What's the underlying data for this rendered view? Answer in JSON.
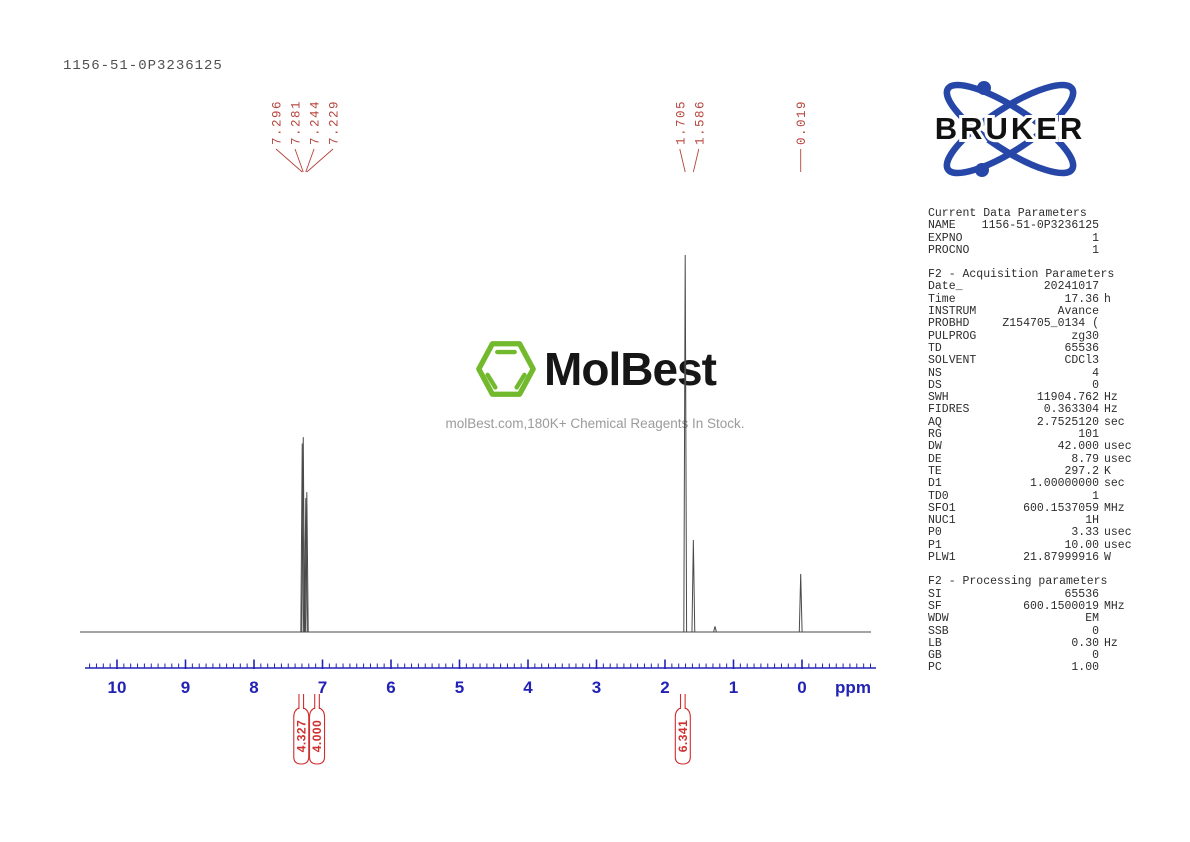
{
  "page": {
    "sample_id": "1156-51-0P3236125"
  },
  "watermark": {
    "brand": "MolBest",
    "tagline": "molBest.com,180K+ Chemical Reagents In Stock.",
    "hexagon_color": "#72b92d"
  },
  "bruker": {
    "label": "BRUKER",
    "blue": "#2747a8",
    "text_color": "#111111"
  },
  "colors": {
    "axis_blue": "#2222b5",
    "peak_label_red": "#b5443c",
    "integral_red": "#cf2f2f",
    "trace_gray": "#4a4a4a"
  },
  "chart_data": {
    "type": "line",
    "title": "1H NMR spectrum 1156-51-0P3236125",
    "xlabel": "ppm",
    "x_axis": {
      "min": -1.05,
      "max": 10.45,
      "direction": "reversed",
      "ticks": [
        10,
        9,
        8,
        7,
        6,
        5,
        4,
        3,
        2,
        1,
        0
      ],
      "minor_tick_step": 0.1,
      "unit_label": "ppm"
    },
    "peaks": [
      {
        "ppm": 7.296,
        "intensity": 0.5
      },
      {
        "ppm": 7.281,
        "intensity": 0.517
      },
      {
        "ppm": 7.244,
        "intensity": 0.355
      },
      {
        "ppm": 7.229,
        "intensity": 0.371
      },
      {
        "ppm": 1.705,
        "intensity": 1.0
      },
      {
        "ppm": 1.586,
        "intensity": 0.244
      },
      {
        "ppm": 1.27,
        "intensity": 0.015
      },
      {
        "ppm": 0.019,
        "intensity": 0.154
      }
    ],
    "peak_label_groups": [
      {
        "labels": [
          "7.296",
          "7.281",
          "7.244",
          "7.229"
        ]
      },
      {
        "labels": [
          "1.705",
          "1.586"
        ]
      },
      {
        "labels": [
          "0.019"
        ]
      }
    ],
    "integrals": [
      {
        "label": "4.327",
        "ppm": 7.31
      },
      {
        "label": "4.000",
        "ppm": 7.08
      },
      {
        "label": "6.341",
        "ppm": 1.74
      }
    ]
  },
  "parameters": {
    "sections": [
      {
        "title": "Current Data Parameters",
        "rows": [
          [
            "NAME",
            "1156-51-0P3236125",
            ""
          ],
          [
            "EXPNO",
            "1",
            ""
          ],
          [
            "PROCNO",
            "1",
            ""
          ]
        ]
      },
      {
        "title": "F2 - Acquisition Parameters",
        "rows": [
          [
            "Date_",
            "20241017",
            ""
          ],
          [
            "Time",
            "17.36",
            "h"
          ],
          [
            "INSTRUM",
            "Avance",
            ""
          ],
          [
            "PROBHD",
            "Z154705_0134 (",
            ""
          ],
          [
            "PULPROG",
            "zg30",
            ""
          ],
          [
            "TD",
            "65536",
            ""
          ],
          [
            "SOLVENT",
            "CDCl3",
            ""
          ],
          [
            "NS",
            "4",
            ""
          ],
          [
            "DS",
            "0",
            ""
          ],
          [
            "SWH",
            "11904.762",
            "Hz"
          ],
          [
            "FIDRES",
            "0.363304",
            "Hz"
          ],
          [
            "AQ",
            "2.7525120",
            "sec"
          ],
          [
            "RG",
            "101",
            ""
          ],
          [
            "DW",
            "42.000",
            "usec"
          ],
          [
            "DE",
            "8.79",
            "usec"
          ],
          [
            "TE",
            "297.2",
            "K"
          ],
          [
            "D1",
            "1.00000000",
            "sec"
          ],
          [
            "TD0",
            "1",
            ""
          ],
          [
            "SFO1",
            "600.1537059",
            "MHz"
          ],
          [
            "NUC1",
            "1H",
            ""
          ],
          [
            "P0",
            "3.33",
            "usec"
          ],
          [
            "P1",
            "10.00",
            "usec"
          ],
          [
            "PLW1",
            "21.87999916",
            "W"
          ]
        ]
      },
      {
        "title": "F2 - Processing parameters",
        "rows": [
          [
            "SI",
            "65536",
            ""
          ],
          [
            "SF",
            "600.1500019",
            "MHz"
          ],
          [
            "WDW",
            "EM",
            ""
          ],
          [
            "SSB",
            "0",
            ""
          ],
          [
            "LB",
            "0.30",
            "Hz"
          ],
          [
            "GB",
            "0",
            ""
          ],
          [
            "PC",
            "1.00",
            ""
          ]
        ]
      }
    ]
  }
}
